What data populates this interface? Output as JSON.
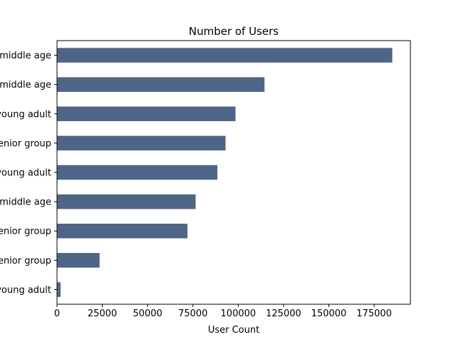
{
  "chart_data": {
    "type": "bar",
    "orientation": "horizontal",
    "title": "Number of Users",
    "xlabel": "User Count",
    "ylabel": "",
    "categories": [
      "middle age",
      "middle age",
      "young adult",
      "senior group",
      "young adult",
      "middle age",
      "senior group",
      "senior group",
      "young adult"
    ],
    "values": [
      185000,
      114500,
      98500,
      93000,
      88500,
      76500,
      72000,
      23500,
      2000
    ],
    "xlim": [
      0,
      195000
    ],
    "xticks": [
      0,
      25000,
      50000,
      75000,
      100000,
      125000,
      150000,
      175000
    ],
    "grid": false,
    "legend": "none",
    "bar_color": "#4f6587"
  }
}
